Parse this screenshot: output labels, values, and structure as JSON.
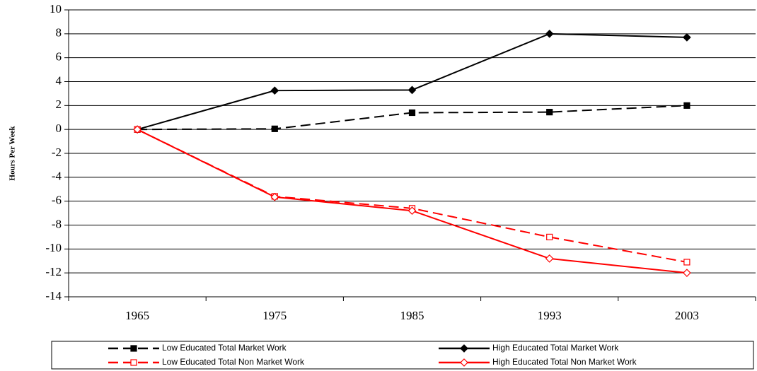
{
  "chart_data": {
    "type": "line",
    "y_label": "Hours Per Week",
    "categories": [
      "1965",
      "1975",
      "1985",
      "1993",
      "2003"
    ],
    "series": [
      {
        "name": "Low Educated Total Market Work",
        "color": "#000000",
        "dash": true,
        "marker": "square",
        "filled": true,
        "values": [
          0,
          0.05,
          1.4,
          1.45,
          2.0
        ]
      },
      {
        "name": "High Educated Total Market Work",
        "color": "#000000",
        "dash": false,
        "marker": "diamond",
        "filled": true,
        "values": [
          0,
          3.25,
          3.3,
          8.0,
          7.7
        ]
      },
      {
        "name": "Low Educated Total Non Market Work",
        "color": "#ff0000",
        "dash": true,
        "marker": "square",
        "filled": false,
        "values": [
          0,
          -5.6,
          -6.6,
          -9.0,
          -11.1
        ]
      },
      {
        "name": "High Educated Total Non Market Work",
        "color": "#ff0000",
        "dash": false,
        "marker": "diamond",
        "filled": false,
        "values": [
          0,
          -5.65,
          -6.8,
          -10.8,
          -12.0
        ]
      }
    ],
    "ylim": [
      -14,
      10
    ],
    "yticks": [
      -14,
      -12,
      -10,
      -8,
      -6,
      -4,
      -2,
      0,
      2,
      4,
      6,
      8,
      10
    ],
    "grid": true
  }
}
